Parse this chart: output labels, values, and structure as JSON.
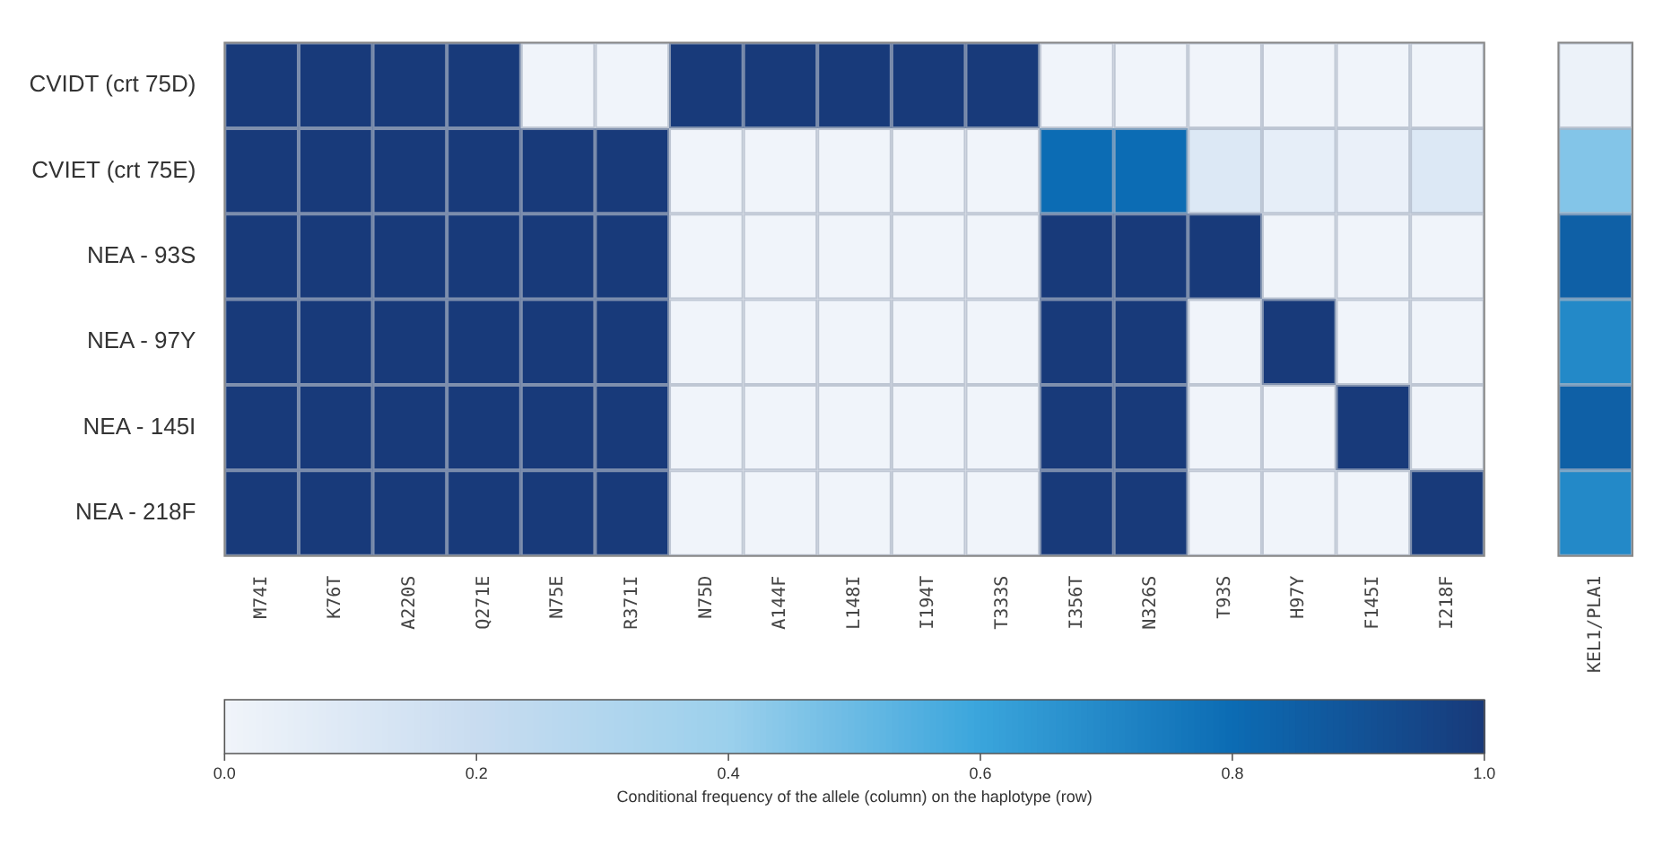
{
  "chart_data": {
    "type": "heatmap",
    "categories": [
      "M74I",
      "K76T",
      "A220S",
      "Q271E",
      "N75E",
      "R371I",
      "N75D",
      "A144F",
      "L148I",
      "I194T",
      "T333S",
      "I356T",
      "N326S",
      "T93S",
      "H97Y",
      "F145I",
      "I218F",
      null,
      "KEL1/PLA1"
    ],
    "y_categories": [
      "CVIDT (crt 75D)",
      "CVIET (crt 75E)",
      "NEA - 93S",
      "NEA - 97Y",
      "NEA - 145I",
      "NEA - 218F"
    ],
    "cells": [
      [
        1,
        1,
        1,
        1,
        0,
        0,
        1,
        1,
        1,
        1,
        1,
        0,
        0,
        0,
        0,
        0,
        0,
        null,
        0.02
      ],
      [
        1,
        1,
        1,
        1,
        1,
        1,
        0,
        0,
        0,
        0,
        0,
        0.8,
        0.8,
        0.1,
        0.05,
        0.03,
        0.1,
        null,
        0.45
      ],
      [
        1,
        1,
        1,
        1,
        1,
        1,
        0,
        0,
        0,
        0,
        0,
        1,
        1,
        1,
        0,
        0,
        0,
        null,
        0.85
      ],
      [
        1,
        1,
        1,
        1,
        1,
        1,
        0,
        0,
        0,
        0,
        0,
        1,
        1,
        0,
        1,
        0,
        0,
        null,
        0.7
      ],
      [
        1,
        1,
        1,
        1,
        1,
        1,
        0,
        0,
        0,
        0,
        0,
        1,
        1,
        0,
        0,
        1,
        0,
        null,
        0.85
      ],
      [
        1,
        1,
        1,
        1,
        1,
        1,
        0,
        0,
        0,
        0,
        0,
        1,
        1,
        0,
        0,
        0,
        1,
        null,
        0.7
      ]
    ],
    "clim": [
      0,
      1
    ],
    "cticks": [
      {
        "value": 0,
        "label": "0.0"
      },
      0.2,
      0.4,
      0.6,
      0.8,
      {
        "value": 1,
        "label": "1.0"
      }
    ],
    "clabel": "Conditional frequency of the allele (column) on the haplotype (row)"
  }
}
